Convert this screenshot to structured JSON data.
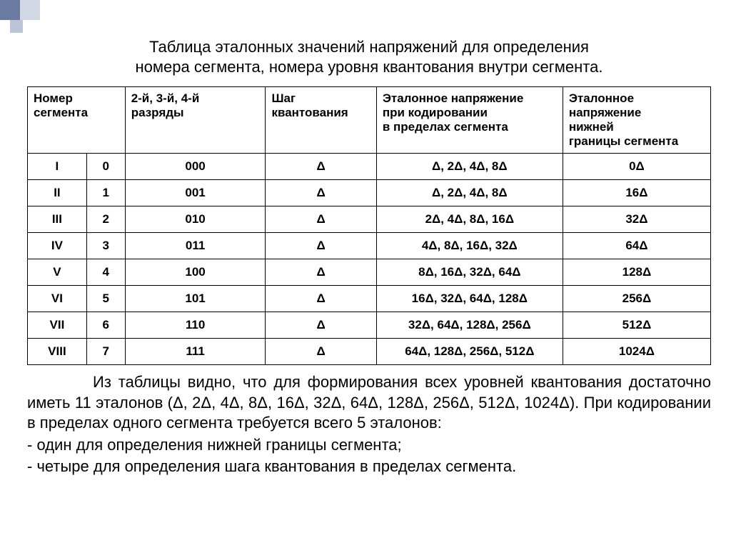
{
  "title_line1": "Таблица эталонных значений напряжений для определения",
  "title_line2": "номера сегмента, номера уровня квантования внутри сегмента.",
  "headers": {
    "h1": "Номер сегмента",
    "h2": "2-й, 3-й, 4-й\n разряды",
    "h3": "Шаг квантования",
    "h4": "Эталонное напряжение\n при кодировании\nв пределах сегмента",
    "h5": "Эталонное напряжение\n нижней\nграницы сегмента"
  },
  "rows": [
    {
      "seg": "I",
      "n": "0",
      "bits": "000",
      "step": "Δ",
      "enc": "Δ, 2Δ, 4Δ, 8Δ",
      "low": "0Δ"
    },
    {
      "seg": "II",
      "n": "1",
      "bits": "001",
      "step": "Δ",
      "enc": "Δ, 2Δ, 4Δ, 8Δ",
      "low": "16Δ"
    },
    {
      "seg": "III",
      "n": "2",
      "bits": "010",
      "step": "Δ",
      "enc": "2Δ, 4Δ, 8Δ, 16Δ",
      "low": "32Δ"
    },
    {
      "seg": "IV",
      "n": "3",
      "bits": "011",
      "step": "Δ",
      "enc": "4Δ, 8Δ, 16Δ, 32Δ",
      "low": "64Δ"
    },
    {
      "seg": "V",
      "n": "4",
      "bits": "100",
      "step": "Δ",
      "enc": "8Δ, 16Δ, 32Δ, 64Δ",
      "low": "128Δ"
    },
    {
      "seg": "VI",
      "n": "5",
      "bits": "101",
      "step": "Δ",
      "enc": "16Δ, 32Δ, 64Δ, 128Δ",
      "low": "256Δ"
    },
    {
      "seg": "VII",
      "n": "6",
      "bits": "110",
      "step": "Δ",
      "enc": "32Δ, 64Δ, 128Δ, 256Δ",
      "low": "512Δ"
    },
    {
      "seg": "VIII",
      "n": "7",
      "bits": "111",
      "step": "Δ",
      "enc": "64Δ, 128Δ, 256Δ, 512Δ",
      "low": "1024Δ"
    }
  ],
  "para1": "Из таблицы видно, что для формирования всех уровней квантования достаточно иметь 11 эталонов (Δ, 2Δ, 4Δ, 8Δ, 16Δ, 32Δ, 64Δ, 128Δ, 256Δ, 512Δ, 1024Δ). При кодировании в пределах одного сегмента требуется всего 5 эталонов:",
  "bullet1": "- один для определения нижней границы сегмента;",
  "bullet2": "- четыре для определения шага квантования в пределах сегмента."
}
